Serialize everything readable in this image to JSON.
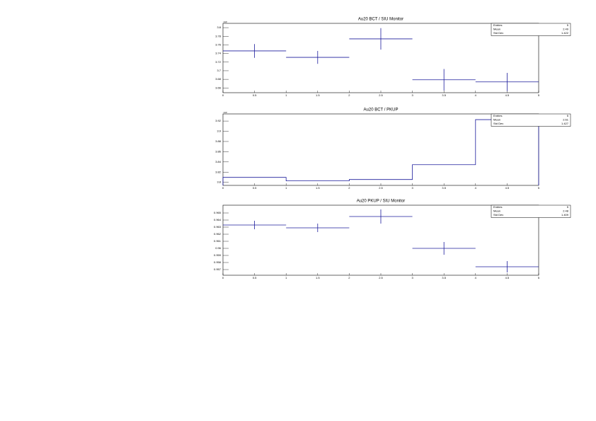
{
  "chart_data": [
    {
      "type": "histogram",
      "title": "Au20 BCT / SIU Monitor",
      "draw_option": "E",
      "color": "#1c1c9c",
      "bins": [
        0,
        1,
        2,
        3,
        4,
        5
      ],
      "values": [
        3.746,
        3.731,
        3.774,
        3.679,
        3.674
      ],
      "errors": [
        0.016,
        0.015,
        0.025,
        0.025,
        0.021
      ],
      "xlim": [
        0,
        5
      ],
      "xticks": [
        0,
        0.5,
        1,
        1.5,
        2,
        2.5,
        3,
        3.5,
        4,
        4.5,
        5
      ],
      "ylim": [
        3.649,
        3.81
      ],
      "yticks": [
        3.66,
        3.68,
        3.7,
        3.72,
        3.74,
        3.76,
        3.78,
        3.8
      ],
      "y_multiplier": "×10³",
      "stats": {
        "labels": [
          "Entries",
          "Mean",
          "Std Dev"
        ],
        "values": [
          5,
          2.49,
          1.422
        ]
      }
    },
    {
      "type": "histogram",
      "title": "Au20 BCT / PKUP",
      "draw_option": "HIST",
      "color": "#1c1c9c",
      "bins": [
        0,
        1,
        2,
        3,
        4,
        5
      ],
      "values": [
        3.8097,
        3.8028,
        3.8055,
        3.8345,
        3.9228
      ],
      "xlim": [
        0,
        5
      ],
      "xticks": [
        0,
        0.5,
        1,
        1.5,
        2,
        2.5,
        3,
        3.5,
        4,
        4.5,
        5
      ],
      "ylim": [
        3.794,
        3.934
      ],
      "yticks": [
        3.8,
        3.82,
        3.84,
        3.86,
        3.88,
        3.9,
        3.92
      ],
      "y_multiplier": "×10³",
      "stats": {
        "labels": [
          "Entries",
          "Mean",
          "Std Dev"
        ],
        "values": [
          5,
          2.61,
          1.427
        ]
      }
    },
    {
      "type": "histogram",
      "title": "Au20 PKUP / SIU Monitor",
      "draw_option": "E",
      "color": "#1c1c9c",
      "bins": [
        0,
        1,
        2,
        3,
        4,
        5
      ],
      "values": [
        0.9633,
        0.9629,
        0.9645,
        0.96,
        0.9574
      ],
      "errors": [
        0.0006,
        0.0006,
        0.001,
        0.0009,
        0.0008
      ],
      "xlim": [
        0,
        5
      ],
      "xticks": [
        0,
        0.5,
        1,
        1.5,
        2,
        2.5,
        3,
        3.5,
        4,
        4.5,
        5
      ],
      "ylim": [
        0.9562,
        0.9661
      ],
      "yticks": [
        0.957,
        0.958,
        0.959,
        0.96,
        0.961,
        0.962,
        0.963,
        0.964,
        0.965
      ],
      "stats": {
        "labels": [
          "Entries",
          "Mean",
          "Std Dev"
        ],
        "values": [
          5,
          2.48,
          1.409
        ]
      }
    }
  ]
}
